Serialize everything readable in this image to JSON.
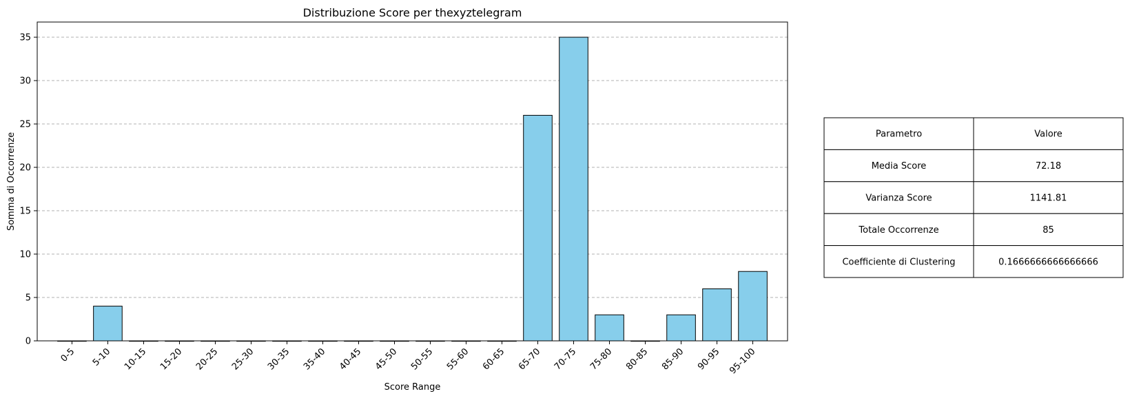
{
  "chart_data": {
    "type": "bar",
    "title": "Distribuzione Score per thexyztelegram",
    "xlabel": "Score Range",
    "ylabel": "Somma di Occorrenze",
    "categories": [
      "0-5",
      "5-10",
      "10-15",
      "15-20",
      "20-25",
      "25-30",
      "30-35",
      "35-40",
      "40-45",
      "45-50",
      "50-55",
      "55-60",
      "60-65",
      "65-70",
      "70-75",
      "75-80",
      "80-85",
      "85-90",
      "90-95",
      "95-100"
    ],
    "values": [
      0,
      4,
      0,
      0,
      0,
      0,
      0,
      0,
      0,
      0,
      0,
      0,
      0,
      26,
      35,
      3,
      0,
      3,
      6,
      8
    ],
    "ylim": [
      0,
      36.75
    ],
    "yticks": [
      0,
      5,
      10,
      15,
      20,
      25,
      30,
      35
    ],
    "grid": "y-dashed",
    "bar_color": "#87ceeb",
    "bar_edge_color": "#000000",
    "grid_color": "#b0b0b0"
  },
  "table": {
    "header": [
      "Parametro",
      "Valore"
    ],
    "rows": [
      [
        "Media Score",
        "72.18"
      ],
      [
        "Varianza Score",
        "1141.81"
      ],
      [
        "Totale Occorrenze",
        "85"
      ],
      [
        "Coefficiente di Clustering",
        "0.1666666666666666"
      ]
    ]
  }
}
